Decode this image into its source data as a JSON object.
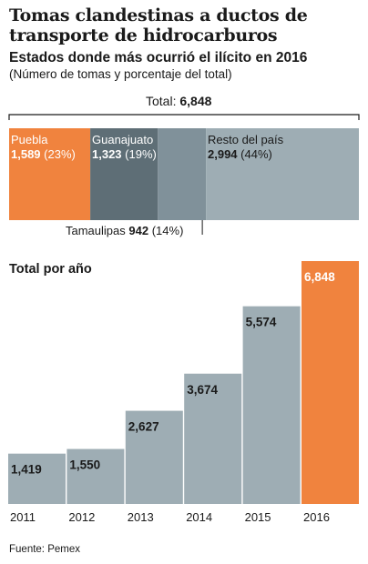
{
  "title": "Tomas clandestinas a ductos de transporte de hidrocarburos",
  "subtitle": "Estados donde más ocurrió el ilícito en 2016",
  "note": "(Número de tomas y porcentaje del total)",
  "source": "Fuente: Pemex",
  "colors": {
    "orange": "#f0833e",
    "gray": "#9eadb4",
    "dark_gray": "#5e6e76",
    "mid_gray": "#80919a"
  },
  "share": {
    "total_prefix": "Total:",
    "total_value": "6,848",
    "segments": [
      {
        "name": "Puebla",
        "value": 1589,
        "value_text": "1,589",
        "pct_text": "(23%)",
        "color": "#f0833e"
      },
      {
        "name": "Guanajuato",
        "value": 1323,
        "value_text": "1,323",
        "pct_text": "(19%)",
        "color": "#5e6e76"
      },
      {
        "name": "Tamaulipas",
        "value": 942,
        "value_text": "942",
        "pct_text": "(14%)",
        "color": "#80919a"
      },
      {
        "name": "Resto del país",
        "value": 2994,
        "value_text": "2,994",
        "pct_text": "(44%)",
        "color": "#9eadb4"
      }
    ]
  },
  "chart_data": [
    {
      "type": "bar",
      "title": "Estados donde más ocurrió el ilícito en 2016",
      "categories": [
        "Puebla",
        "Guanajuato",
        "Tamaulipas",
        "Resto del país"
      ],
      "values": [
        1589,
        1323,
        942,
        2994
      ],
      "percentages": [
        23,
        19,
        14,
        44
      ],
      "total": 6848,
      "stacked": true
    },
    {
      "type": "bar",
      "title": "Total por año",
      "categories": [
        "2011",
        "2012",
        "2013",
        "2014",
        "2015",
        "2016"
      ],
      "values": [
        1419,
        1550,
        2627,
        3674,
        5574,
        6848
      ],
      "value_labels": [
        "1,419",
        "1,550",
        "2,627",
        "3,674",
        "5,574",
        "6,848"
      ],
      "highlight": "2016",
      "grid": false
    }
  ]
}
